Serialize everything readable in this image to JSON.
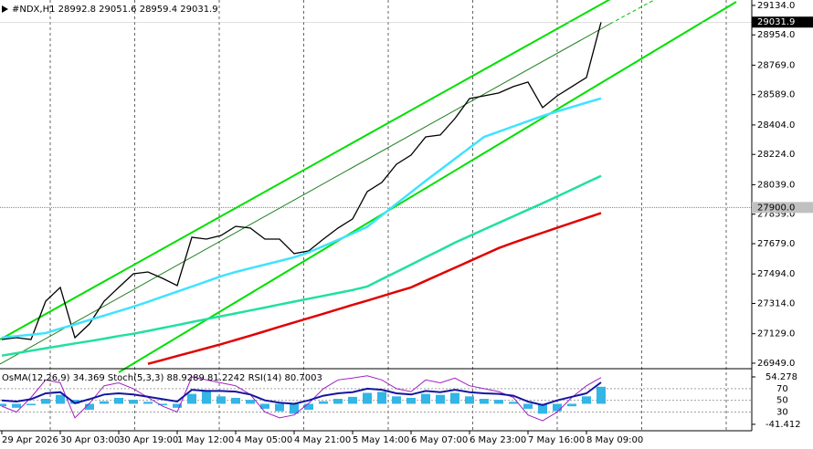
{
  "chart_data": [
    {
      "type": "line",
      "header": "#NDX,H1  28992.8 29051.6 28959.4 29031.9",
      "categories": [
        "29 Apr 2026",
        null,
        null,
        null,
        "30 Apr 03:00",
        null,
        null,
        null,
        "30 Apr 19:00",
        null,
        null,
        null,
        "1 May 12:00",
        null,
        null,
        null,
        "4 May 05:00",
        null,
        null,
        null,
        "4 May 21:00",
        null,
        null,
        null,
        "5 May 14:00",
        null,
        null,
        null,
        "6 May 07:00",
        null,
        null,
        null,
        "6 May 23:00",
        null,
        null,
        null,
        "7 May 16:00",
        null,
        null,
        null,
        "8 May 09:00",
        null
      ],
      "series": [
        {
          "color": "#000000",
          "values": [
            27094,
            27105,
            27094,
            27328,
            27412,
            27105,
            27189,
            27328,
            27412,
            27495,
            27506,
            27467,
            27423,
            27718,
            27707,
            27729,
            27785,
            27774,
            27707,
            27707,
            27618,
            27635,
            27707,
            27774,
            27830,
            27997,
            28053,
            28164,
            28220,
            28331,
            28343,
            28443,
            28565,
            28582,
            28599,
            28638,
            28666,
            28510,
            28582,
            28638,
            28694,
            29031.9
          ]
        },
        {
          "color": "#3ee3ff",
          "values": [
            27105,
            27114,
            27123,
            27133,
            27160,
            27186,
            27213,
            27240,
            27267,
            27294,
            27324,
            27355,
            27386,
            27417,
            27448,
            27480,
            27506,
            27529,
            27551,
            27573,
            27596,
            27626,
            27664,
            27702,
            27741,
            27782,
            27852,
            27923,
            27993,
            28063,
            28130,
            28197,
            28264,
            28331,
            28363,
            28395,
            28427,
            28459,
            28487,
            28513,
            28540,
            28566
          ]
        },
        {
          "color": "#20e0a0",
          "values": [
            26995,
            27010,
            27025,
            27040,
            27055,
            27070,
            27084,
            27099,
            27115,
            27129,
            27146,
            27164,
            27182,
            27200,
            27218,
            27236,
            27253,
            27271,
            27289,
            27307,
            27325,
            27343,
            27360,
            27378,
            27396,
            27417,
            27462,
            27506,
            27551,
            27596,
            27640,
            27685,
            27726,
            27766,
            27806,
            27846,
            27886,
            27926,
            27967,
            28009,
            28052,
            28093
          ]
        },
        {
          "color": "#e00000",
          "values": [
            null,
            null,
            null,
            null,
            null,
            null,
            null,
            null,
            null,
            null,
            26945,
            26969,
            26993,
            27017,
            27041,
            27065,
            27091,
            27117,
            27144,
            27171,
            27198,
            27224,
            27251,
            27278,
            27305,
            27331,
            27358,
            27385,
            27412,
            27452,
            27492,
            27532,
            27572,
            27612,
            27652,
            27685,
            27716,
            27746,
            27776,
            27806,
            27836,
            27866
          ]
        }
      ],
      "ylim": [
        26921,
        29167
      ],
      "yticks": [
        {
          "value": 29134,
          "label": "29134.0"
        },
        {
          "value": 28954,
          "label": "28954.0"
        },
        {
          "value": 28769,
          "label": "28769.0"
        },
        {
          "value": 28589,
          "label": "28589.0"
        },
        {
          "value": 28404,
          "label": "28404.0"
        },
        {
          "value": 28224,
          "label": "28224.0"
        },
        {
          "value": 28039,
          "label": "28039.0"
        },
        {
          "value": 27859,
          "label": "27859.0"
        },
        {
          "value": 27679,
          "label": "27679.0"
        },
        {
          "value": 27494,
          "label": "27494.0"
        },
        {
          "value": 27314,
          "label": "27314.0"
        },
        {
          "value": 27129,
          "label": "27129.0"
        },
        {
          "value": 26949,
          "label": "26949.0"
        }
      ],
      "last_price": 29031.9,
      "hline": {
        "value": 27900,
        "label": "27900.0"
      },
      "grid": true
    },
    {
      "type": "bar",
      "header": "OsMA(12,26,9) 34.369  Stoch(5,3,3) 88.9289 81.2242  RSI(14) 80.7003",
      "color": "#33b5e5",
      "values": [
        -5,
        -8,
        -3,
        10,
        18,
        8,
        -12,
        5,
        12,
        8,
        4,
        -3,
        -8,
        20,
        25,
        15,
        12,
        8,
        -10,
        -15,
        -20,
        -12,
        5,
        10,
        14,
        22,
        24,
        15,
        12,
        20,
        18,
        22,
        15,
        10,
        8,
        4,
        -10,
        -20,
        -15,
        -5,
        15,
        34.369
      ],
      "ylim": [
        -54.4,
        67.2
      ],
      "yticks": [
        54.278,
        -41.412
      ],
      "series": [
        {
          "color": "#a020c0",
          "axis": "y2",
          "values": [
            40,
            30,
            55,
            85,
            80,
            20,
            45,
            75,
            80,
            70,
            55,
            40,
            30,
            90,
            85,
            80,
            75,
            60,
            30,
            20,
            25,
            45,
            70,
            85,
            88,
            92,
            85,
            70,
            65,
            85,
            80,
            88,
            75,
            70,
            65,
            55,
            25,
            15,
            30,
            55,
            75,
            88.9289
          ]
        },
        {
          "color": "#1515a0",
          "axis": "y2",
          "values": [
            50,
            48,
            52,
            62,
            64,
            45,
            52,
            60,
            62,
            60,
            56,
            52,
            48,
            68,
            66,
            66,
            65,
            60,
            50,
            46,
            44,
            50,
            58,
            62,
            64,
            70,
            68,
            62,
            60,
            66,
            64,
            68,
            64,
            62,
            61,
            58,
            48,
            42,
            50,
            56,
            62,
            80.7003
          ]
        }
      ],
      "y2lim": [
        -2,
        101
      ],
      "y2ticks": [
        70,
        50,
        30
      ]
    }
  ]
}
